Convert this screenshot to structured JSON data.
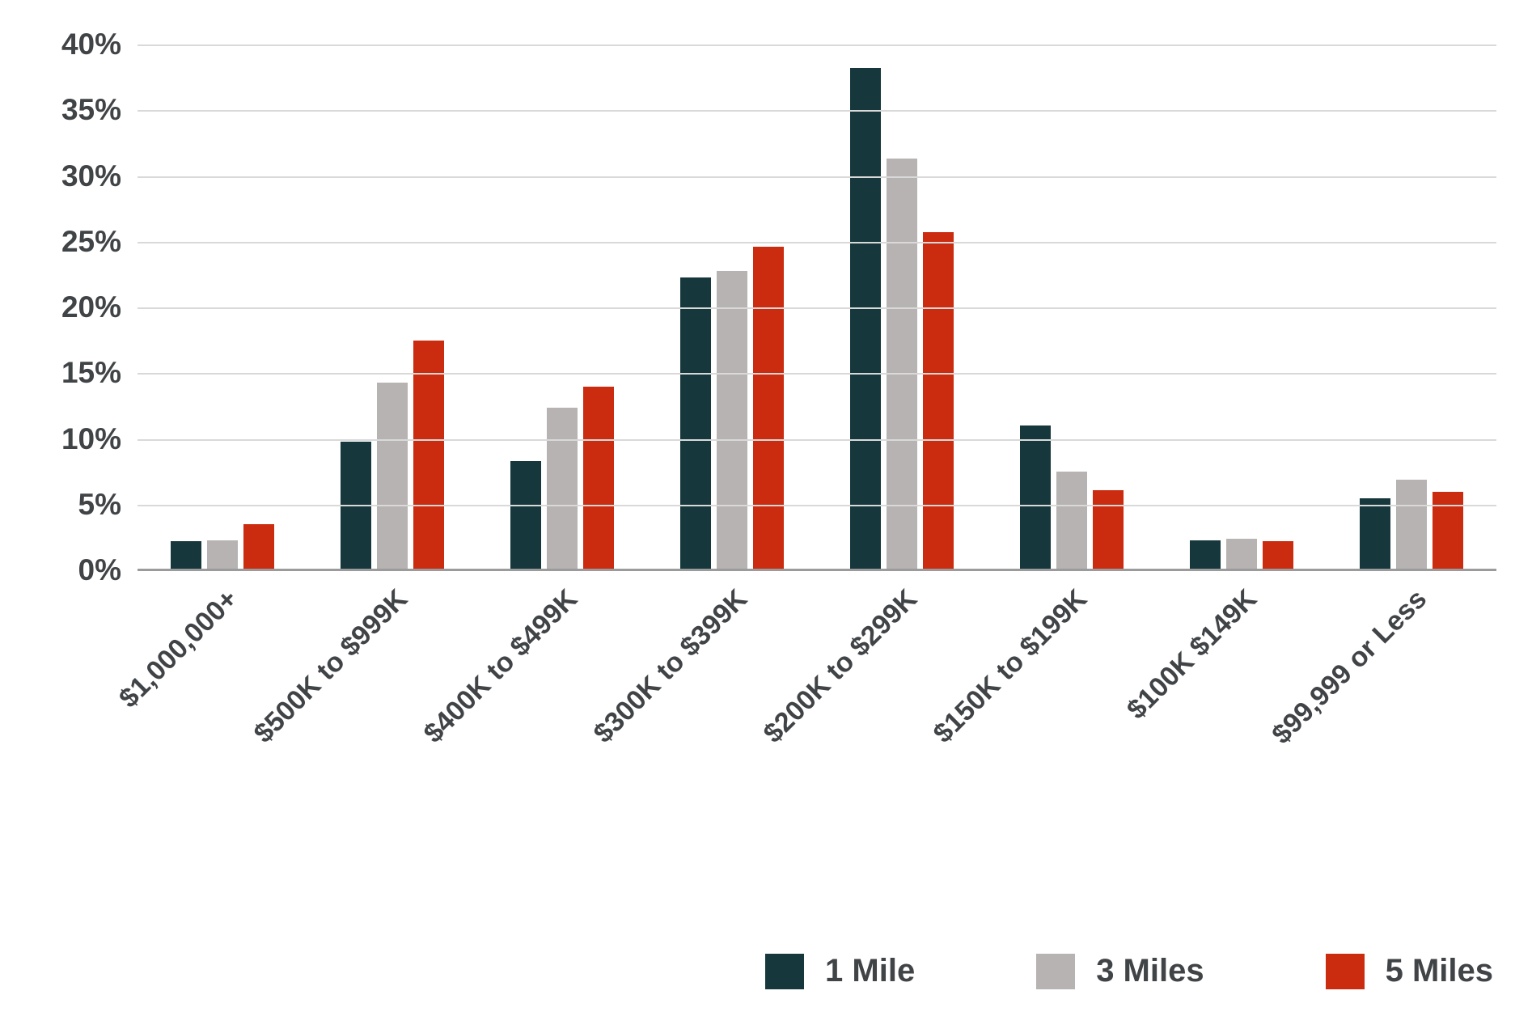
{
  "chart_data": {
    "type": "bar",
    "title": "",
    "xlabel": "",
    "ylabel": "",
    "categories": [
      "$1,000,000+",
      "$500K to $999K",
      "$400K to $499K",
      "$300K to $399K",
      "$200K to $299K",
      "$150K to $199K",
      "$100K $149K",
      "$99,999 or Less"
    ],
    "series": [
      {
        "name": "1 Mile",
        "color": "#16383c",
        "values": [
          2.2,
          9.8,
          8.3,
          22.3,
          38.2,
          11.0,
          2.3,
          5.5
        ]
      },
      {
        "name": "3 Miles",
        "color": "#b6b3b2",
        "values": [
          2.3,
          14.3,
          12.4,
          22.8,
          31.3,
          7.5,
          2.4,
          6.9
        ]
      },
      {
        "name": "5 Miles",
        "color": "#cb2b0e",
        "values": [
          3.5,
          17.5,
          14.0,
          24.6,
          25.7,
          6.1,
          2.2,
          6.0
        ]
      }
    ],
    "ylim": [
      0,
      40
    ],
    "ytick_step": 5,
    "ytick_suffix": "%",
    "grid": true,
    "gridline_color": "#d9d9d9",
    "axis_line_color": "#9b9b9b",
    "text_color": "#414447",
    "legend_position": "bottom-right"
  }
}
